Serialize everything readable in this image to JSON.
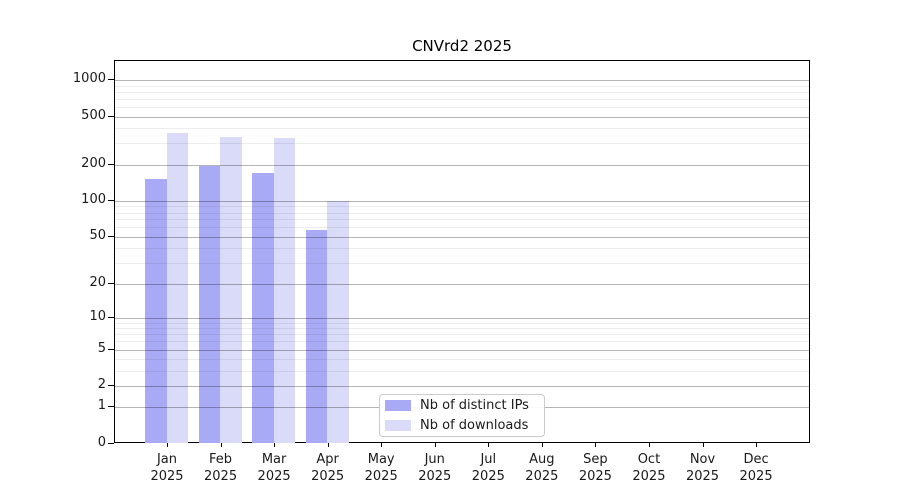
{
  "title": "CNVrd2 2025",
  "colors": {
    "distinct_ips": "#a9aaf5",
    "downloads": "#d9dbf8",
    "grid_major": "rgba(0,0,0,0.29)",
    "grid_minor": "rgba(0,0,0,0.07)",
    "axis": "#000000"
  },
  "legend": {
    "items": [
      {
        "label": "Nb of distinct IPs",
        "color_key": "distinct_ips"
      },
      {
        "label": "Nb of downloads",
        "color_key": "downloads"
      }
    ]
  },
  "chart_data": {
    "type": "bar",
    "title": "CNVrd2 2025",
    "year": "2025",
    "months": [
      "Jan",
      "Feb",
      "Mar",
      "Apr",
      "May",
      "Jun",
      "Jul",
      "Aug",
      "Sep",
      "Oct",
      "Nov",
      "Dec"
    ],
    "series": [
      {
        "name": "Nb of distinct IPs",
        "color_key": "distinct_ips",
        "values": [
          152,
          196,
          169,
          57,
          null,
          null,
          null,
          null,
          null,
          null,
          null,
          null
        ]
      },
      {
        "name": "Nb of downloads",
        "color_key": "downloads",
        "values": [
          365,
          340,
          330,
          100,
          null,
          null,
          null,
          null,
          null,
          null,
          null,
          null
        ]
      }
    ],
    "yscale": "log10(value+1)",
    "yticks": [
      1000,
      500,
      200,
      100,
      50,
      20,
      10,
      5,
      2,
      1,
      0
    ],
    "grid": {
      "major": [
        1,
        2,
        5,
        10,
        20,
        50,
        100,
        200,
        500,
        1000
      ],
      "minor": [
        3,
        4,
        6,
        7,
        8,
        9,
        30,
        40,
        60,
        70,
        80,
        90,
        300,
        400,
        600,
        700,
        800,
        900
      ]
    },
    "ylim": [
      0,
      1440
    ],
    "grid_on": true,
    "legend_position": "lower center-left"
  }
}
